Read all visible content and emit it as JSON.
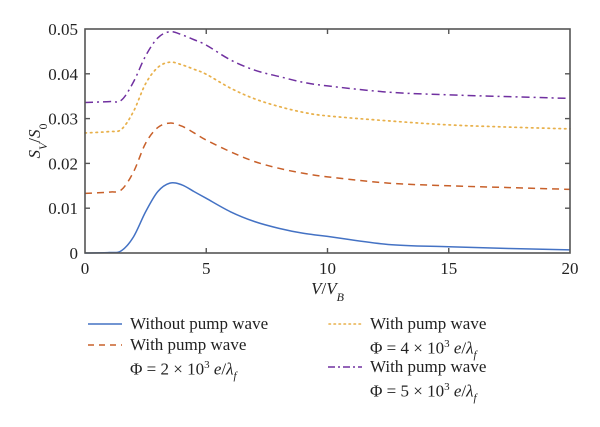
{
  "chart_data": {
    "type": "line",
    "title": "",
    "xlabel": "V/V_B",
    "ylabel": "S_V/S_0",
    "xlim": [
      0,
      20
    ],
    "ylim": [
      0,
      0.05
    ],
    "xticks": [
      0,
      5,
      10,
      15,
      20
    ],
    "xtick_labels": [
      "0",
      "5",
      "10",
      "15",
      "20"
    ],
    "yticks": [
      0,
      0.01,
      0.02,
      0.03,
      0.04,
      0.05
    ],
    "ytick_labels": [
      "0",
      "0.01",
      "0.02",
      "0.03",
      "0.04",
      "0.05"
    ],
    "grid": false,
    "legend_position": "bottom",
    "x": [
      0,
      1,
      1.5,
      2,
      2.5,
      3,
      3.5,
      4,
      4.5,
      5,
      6,
      7,
      8,
      9,
      10,
      12.5,
      15,
      17.5,
      20
    ],
    "series": [
      {
        "name": "Without pump wave",
        "legend_line1": "Without pump wave",
        "legend_line2": "",
        "color": "#4472c4",
        "style": "solid",
        "values": [
          0.0,
          0.0001,
          0.0005,
          0.0036,
          0.0092,
          0.0137,
          0.0156,
          0.0152,
          0.0137,
          0.0122,
          0.0092,
          0.007,
          0.0055,
          0.0044,
          0.0037,
          0.0019,
          0.0014,
          0.001,
          0.0007
        ]
      },
      {
        "name": "With pump wave Φ = 2 × 10^3 e/λ_f",
        "legend_line1": "With pump wave",
        "legend_line2": "Φ = 2 × 10³ e/λf",
        "phi_coefficient": "2",
        "color": "#c8602a",
        "style": "dashed",
        "values": [
          0.0133,
          0.0136,
          0.0141,
          0.0181,
          0.0245,
          0.028,
          0.029,
          0.0283,
          0.0268,
          0.0252,
          0.0226,
          0.0204,
          0.0189,
          0.0178,
          0.017,
          0.0156,
          0.015,
          0.0146,
          0.0142
        ]
      },
      {
        "name": "With pump wave Φ = 4 × 10^3 e/λ_f",
        "legend_line1": "With pump wave",
        "legend_line2": "Φ = 4 × 10³ e/λf",
        "phi_coefficient": "4",
        "color": "#e8b04a",
        "style": "dotted",
        "values": [
          0.0268,
          0.0271,
          0.0276,
          0.0316,
          0.0378,
          0.0414,
          0.0426,
          0.042,
          0.041,
          0.0399,
          0.0368,
          0.0344,
          0.0327,
          0.0314,
          0.0306,
          0.0295,
          0.0286,
          0.0281,
          0.0277
        ]
      },
      {
        "name": "With pump wave Φ = 5 × 10^3 e/λ_f",
        "legend_line1": "With pump wave",
        "legend_line2": "Φ = 5 × 10³ e/λf",
        "phi_coefficient": "5",
        "color": "#7030a0",
        "style": "dashdot",
        "values": [
          0.0336,
          0.0338,
          0.0341,
          0.0382,
          0.044,
          0.048,
          0.0494,
          0.0487,
          0.0476,
          0.0464,
          0.0431,
          0.0408,
          0.0394,
          0.0381,
          0.0373,
          0.0359,
          0.0353,
          0.0349,
          0.0345
        ]
      }
    ]
  },
  "axis_labels": {
    "x_main": "V",
    "x_sep": "/",
    "x_den": "V",
    "x_den_sub": "B",
    "y_main": "S",
    "y_main_sub": "V",
    "y_sep": "/",
    "y_den": "S",
    "y_den_sub": "0"
  },
  "legend": {
    "items": [
      {
        "line1": "Without pump wave",
        "phi_prefix": "",
        "phi_coef": "",
        "phi_unit": ""
      },
      {
        "line1": "With pump wave",
        "phi_prefix": "Φ = ",
        "phi_coef": "2 × 10",
        "phi_exp": "3",
        "phi_unit_e": "e",
        "phi_unit_sep": "/",
        "phi_unit_l": "λ",
        "phi_unit_sub": "f"
      },
      {
        "line1": "With pump wave",
        "phi_prefix": "Φ = ",
        "phi_coef": "4 × 10",
        "phi_exp": "3",
        "phi_unit_e": "e",
        "phi_unit_sep": "/",
        "phi_unit_l": "λ",
        "phi_unit_sub": "f"
      },
      {
        "line1": "With pump wave",
        "phi_prefix": "Φ = ",
        "phi_coef": "5 × 10",
        "phi_exp": "3",
        "phi_unit_e": "e",
        "phi_unit_sep": "/",
        "phi_unit_l": "λ",
        "phi_unit_sub": "f"
      }
    ]
  }
}
